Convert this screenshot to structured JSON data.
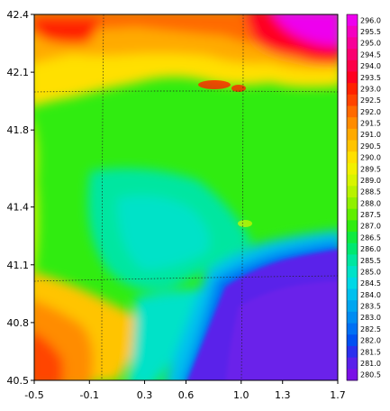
{
  "chart_data": {
    "type": "heatmap",
    "title": "",
    "xlabel": "",
    "ylabel": "",
    "xlim": [
      -0.5,
      1.7
    ],
    "ylim": [
      40.5,
      42.4
    ],
    "x_ticks": [
      "-0.5",
      "-0.1",
      "0.3",
      "0.6",
      "1.0",
      "1.3",
      "1.7"
    ],
    "y_ticks": [
      "42.4",
      "42.1",
      "41.8",
      "41.4",
      "41.1",
      "40.8",
      "40.5"
    ],
    "grid": true,
    "legend": "right",
    "colorbar_levels": [
      "296.0",
      "295.5",
      "295.0",
      "294.5",
      "294.0",
      "293.5",
      "293.0",
      "292.5",
      "292.0",
      "291.5",
      "291.0",
      "290.5",
      "290.0",
      "289.5",
      "289.0",
      "288.5",
      "288.0",
      "287.5",
      "287.0",
      "286.5",
      "286.0",
      "285.5",
      "285.0",
      "284.5",
      "284.0",
      "283.5",
      "283.0",
      "282.5",
      "282.0",
      "281.5",
      "281.0",
      "280.5"
    ],
    "colorbar_colors": [
      "#ee00ee",
      "#f400c0",
      "#f80098",
      "#fa0070",
      "#fc0048",
      "#ff0020",
      "#ff2200",
      "#ff4400",
      "#ff6a00",
      "#ff8c00",
      "#ffaa00",
      "#ffc400",
      "#ffe000",
      "#f2f000",
      "#d8f400",
      "#b8f200",
      "#90f000",
      "#60ee00",
      "#30ec10",
      "#10ea40",
      "#00e870",
      "#00e6a0",
      "#00e2c8",
      "#00d8e6",
      "#00c0ee",
      "#00a6f0",
      "#008cf2",
      "#0070f4",
      "#0050f2",
      "#2a30ee",
      "#5a20ea",
      "#7a10e6"
    ]
  }
}
